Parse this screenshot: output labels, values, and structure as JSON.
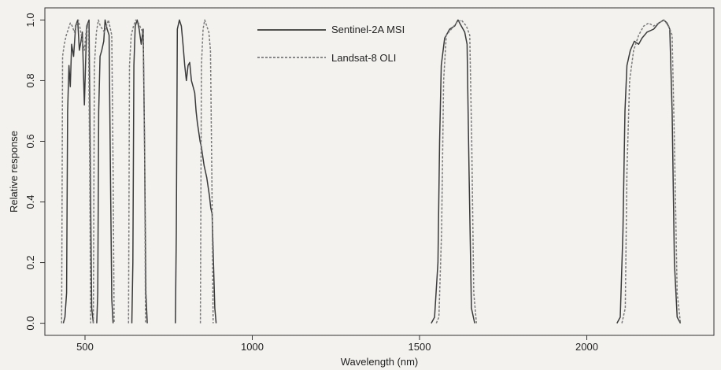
{
  "chart_data": {
    "type": "line",
    "title": "",
    "xlabel": "Wavelength (nm)",
    "ylabel": "Relative response",
    "xlim": [
      380,
      2380
    ],
    "ylim": [
      -0.04,
      1.04
    ],
    "x_ticks": [
      500,
      1000,
      1500,
      2000
    ],
    "x_tick_labels": [
      "500",
      "1000",
      "1500",
      "2000"
    ],
    "y_ticks": [
      0.0,
      0.2,
      0.4,
      0.6,
      0.8,
      1.0
    ],
    "y_tick_labels": [
      "0.0",
      "0.2",
      "0.4",
      "0.6",
      "0.8",
      "1.0"
    ],
    "grid": false,
    "legend_position": "top-center",
    "colors": {
      "sentinel": "#3a3a3a",
      "landsat": "#7a7a7a",
      "axis": "#333333"
    },
    "series": [
      {
        "name": "Sentinel-2A MSI",
        "style": "solid",
        "segments": [
          [
            [
              435,
              0.0
            ],
            [
              440,
              0.02
            ],
            [
              445,
              0.1
            ],
            [
              448,
              0.7
            ],
            [
              452,
              0.85
            ],
            [
              456,
              0.78
            ],
            [
              460,
              0.92
            ],
            [
              466,
              0.88
            ],
            [
              472,
              0.98
            ],
            [
              478,
              1.0
            ],
            [
              483,
              0.9
            ],
            [
              488,
              0.93
            ],
            [
              492,
              0.96
            ],
            [
              498,
              0.72
            ],
            [
              505,
              0.98
            ],
            [
              512,
              1.0
            ],
            [
              516,
              0.5
            ],
            [
              520,
              0.05
            ],
            [
              525,
              0.0
            ]
          ],
          [
            [
              535,
              0.0
            ],
            [
              538,
              0.1
            ],
            [
              541,
              0.7
            ],
            [
              545,
              0.88
            ],
            [
              550,
              0.9
            ],
            [
              556,
              0.93
            ],
            [
              560,
              1.0
            ],
            [
              566,
              0.97
            ],
            [
              572,
              0.95
            ],
            [
              576,
              0.5
            ],
            [
              580,
              0.08
            ],
            [
              584,
              0.0
            ]
          ],
          [
            [
              640,
              0.0
            ],
            [
              643,
              0.2
            ],
            [
              646,
              0.85
            ],
            [
              650,
              0.98
            ],
            [
              656,
              1.0
            ],
            [
              662,
              0.97
            ],
            [
              668,
              0.92
            ],
            [
              674,
              0.97
            ],
            [
              678,
              0.6
            ],
            [
              682,
              0.1
            ],
            [
              686,
              0.0
            ]
          ],
          [
            [
              770,
              0.0
            ],
            [
              773,
              0.3
            ],
            [
              776,
              0.97
            ],
            [
              782,
              1.0
            ],
            [
              788,
              0.98
            ],
            [
              793,
              0.92
            ],
            [
              798,
              0.85
            ],
            [
              803,
              0.8
            ],
            [
              808,
              0.85
            ],
            [
              813,
              0.86
            ],
            [
              818,
              0.8
            ],
            [
              823,
              0.78
            ],
            [
              828,
              0.76
            ],
            [
              832,
              0.7
            ],
            [
              836,
              0.66
            ],
            [
              840,
              0.63
            ],
            [
              844,
              0.6
            ],
            [
              848,
              0.58
            ],
            [
              852,
              0.55
            ],
            [
              856,
              0.52
            ],
            [
              860,
              0.5
            ],
            [
              864,
              0.48
            ],
            [
              868,
              0.45
            ],
            [
              872,
              0.42
            ],
            [
              876,
              0.38
            ],
            [
              880,
              0.36
            ],
            [
              884,
              0.2
            ],
            [
              888,
              0.05
            ],
            [
              892,
              0.0
            ]
          ]
        ]
      },
      {
        "name": "Landsat-8 OLI",
        "style": "dashed",
        "segments": [
          [
            [
              430,
              0.0
            ],
            [
              433,
              0.88
            ],
            [
              438,
              0.92
            ],
            [
              444,
              0.95
            ],
            [
              450,
              0.97
            ],
            [
              456,
              0.99
            ],
            [
              462,
              0.98
            ],
            [
              468,
              0.96
            ],
            [
              474,
              0.98
            ],
            [
              480,
              1.0
            ],
            [
              486,
              0.97
            ],
            [
              492,
              0.93
            ],
            [
              498,
              0.9
            ],
            [
              504,
              0.97
            ],
            [
              510,
              0.99
            ],
            [
              514,
              0.5
            ],
            [
              517,
              0.0
            ]
          ],
          [
            [
              525,
              0.0
            ],
            [
              528,
              0.85
            ],
            [
              534,
              0.96
            ],
            [
              540,
              1.0
            ],
            [
              546,
              0.98
            ],
            [
              552,
              0.97
            ],
            [
              558,
              0.96
            ],
            [
              564,
              0.98
            ],
            [
              570,
              1.0
            ],
            [
              576,
              0.97
            ],
            [
              580,
              0.95
            ],
            [
              584,
              0.5
            ],
            [
              587,
              0.0
            ]
          ],
          [
            [
              630,
              0.0
            ],
            [
              633,
              0.85
            ],
            [
              638,
              0.95
            ],
            [
              645,
              0.98
            ],
            [
              652,
              1.0
            ],
            [
              660,
              0.99
            ],
            [
              668,
              0.97
            ],
            [
              674,
              0.96
            ],
            [
              678,
              0.6
            ],
            [
              681,
              0.0
            ]
          ],
          [
            [
              845,
              0.0
            ],
            [
              848,
              0.85
            ],
            [
              853,
              0.97
            ],
            [
              858,
              1.0
            ],
            [
              864,
              0.98
            ],
            [
              870,
              0.96
            ],
            [
              875,
              0.9
            ],
            [
              879,
              0.5
            ],
            [
              883,
              0.0
            ]
          ]
        ]
      },
      {
        "name": "Sentinel-2A MSI",
        "style": "solid",
        "segments": [
          [
            [
              1535,
              0.0
            ],
            [
              1545,
              0.02
            ],
            [
              1555,
              0.2
            ],
            [
              1560,
              0.6
            ],
            [
              1565,
              0.85
            ],
            [
              1575,
              0.94
            ],
            [
              1590,
              0.97
            ],
            [
              1605,
              0.98
            ],
            [
              1615,
              1.0
            ],
            [
              1625,
              0.98
            ],
            [
              1635,
              0.96
            ],
            [
              1642,
              0.92
            ],
            [
              1648,
              0.5
            ],
            [
              1655,
              0.05
            ],
            [
              1665,
              0.0
            ]
          ],
          [
            [
              2090,
              0.0
            ],
            [
              2100,
              0.02
            ],
            [
              2108,
              0.3
            ],
            [
              2114,
              0.7
            ],
            [
              2120,
              0.85
            ],
            [
              2130,
              0.9
            ],
            [
              2142,
              0.93
            ],
            [
              2155,
              0.92
            ],
            [
              2165,
              0.94
            ],
            [
              2180,
              0.96
            ],
            [
              2200,
              0.97
            ],
            [
              2215,
              0.99
            ],
            [
              2230,
              1.0
            ],
            [
              2240,
              0.99
            ],
            [
              2248,
              0.97
            ],
            [
              2255,
              0.7
            ],
            [
              2262,
              0.2
            ],
            [
              2270,
              0.02
            ],
            [
              2280,
              0.0
            ]
          ]
        ]
      },
      {
        "name": "Landsat-8 OLI",
        "style": "dashed",
        "segments": [
          [
            [
              1550,
              0.0
            ],
            [
              1558,
              0.02
            ],
            [
              1566,
              0.3
            ],
            [
              1572,
              0.8
            ],
            [
              1580,
              0.95
            ],
            [
              1595,
              0.97
            ],
            [
              1610,
              0.99
            ],
            [
              1625,
              1.0
            ],
            [
              1640,
              0.98
            ],
            [
              1650,
              0.95
            ],
            [
              1656,
              0.6
            ],
            [
              1662,
              0.1
            ],
            [
              1670,
              0.0
            ]
          ],
          [
            [
              2105,
              0.0
            ],
            [
              2115,
              0.05
            ],
            [
              2120,
              0.5
            ],
            [
              2128,
              0.8
            ],
            [
              2140,
              0.9
            ],
            [
              2155,
              0.95
            ],
            [
              2170,
              0.98
            ],
            [
              2185,
              0.99
            ],
            [
              2200,
              0.98
            ],
            [
              2215,
              0.99
            ],
            [
              2230,
              1.0
            ],
            [
              2245,
              0.98
            ],
            [
              2255,
              0.95
            ],
            [
              2262,
              0.6
            ],
            [
              2270,
              0.1
            ],
            [
              2280,
              0.0
            ]
          ]
        ]
      }
    ]
  }
}
